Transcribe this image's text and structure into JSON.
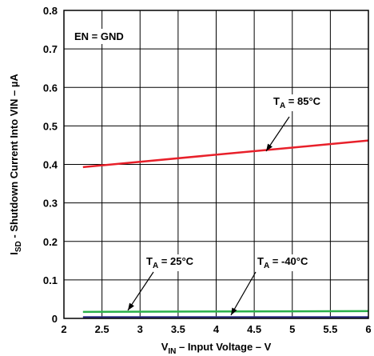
{
  "chart_data": {
    "type": "line",
    "xlabel": {
      "main": "V",
      "sub": "IN",
      "rest": " – Input Voltage – V"
    },
    "ylabel": {
      "main": "I",
      "sub": "SD",
      "rest": " - Shutdown Current Into VIN – µA"
    },
    "xlim": [
      2,
      6
    ],
    "ylim": [
      0,
      0.8
    ],
    "xticks": [
      2,
      2.5,
      3,
      3.5,
      4,
      4.5,
      5,
      5.5,
      6
    ],
    "xtick_labels": [
      "2",
      "2.5",
      "3",
      "3.5",
      "4",
      "4.5",
      "5",
      "5.5",
      "6"
    ],
    "yticks": [
      0,
      0.1,
      0.2,
      0.3,
      0.4,
      0.5,
      0.6,
      0.7,
      0.8
    ],
    "ytick_labels": [
      "0",
      "0.1",
      "0.2",
      "0.3",
      "0.4",
      "0.5",
      "0.6",
      "0.7",
      "0.8"
    ],
    "grid": true,
    "series": [
      {
        "label_ref": "t85",
        "color": "#e8202a",
        "x": [
          2.25,
          6
        ],
        "y": [
          0.393,
          0.462
        ]
      },
      {
        "label_ref": "t25",
        "color": "#2bb04a",
        "x": [
          2.25,
          6
        ],
        "y": [
          0.017,
          0.019
        ]
      },
      {
        "label_ref": "tm40",
        "color": "#2c2e83",
        "x": [
          2.25,
          6
        ],
        "y": [
          0.003,
          0.003
        ]
      }
    ],
    "annotations": {
      "condition": "EN = GND",
      "t85": {
        "main": "T",
        "sub": "A",
        "rest": " = 85°C"
      },
      "t25": {
        "main": "T",
        "sub": "A",
        "rest": " = 25°C"
      },
      "tm40": {
        "main": "T",
        "sub": "A",
        "rest": " = -40°C"
      }
    }
  }
}
